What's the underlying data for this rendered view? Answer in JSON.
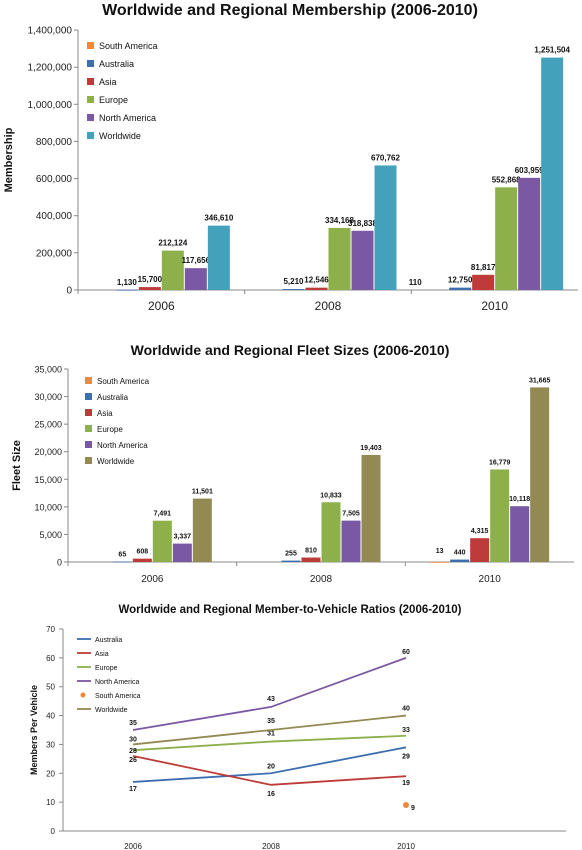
{
  "charts": [
    {
      "type": "bar",
      "title": "Worldwide and Regional Membership (2006-2010)",
      "xlabel": "",
      "ylabel": "Membership",
      "ylim": [
        0,
        1400000
      ],
      "yticks": [
        "0",
        "200,000",
        "400,000",
        "600,000",
        "800,000",
        "1,000,000",
        "1,200,000",
        "1,400,000"
      ],
      "categories": [
        "2006",
        "2008",
        "2010"
      ],
      "grid": false,
      "legend_position": "top-left",
      "series": [
        {
          "name": "South America",
          "color": "#f0883a",
          "values": [
            null,
            null,
            null
          ],
          "labels": [
            "",
            "",
            ""
          ]
        },
        {
          "name": "Australia",
          "color": "#3d6fb0",
          "values": [
            1130,
            5210,
            12750
          ],
          "labels": [
            "1,130",
            "5,210",
            "12,750"
          ]
        },
        {
          "name": "Asia",
          "color": "#bd3b38",
          "values": [
            15700,
            12546,
            81817
          ],
          "labels": [
            "15,700",
            "12,546",
            "81,817"
          ]
        },
        {
          "name": "Europe",
          "color": "#8db04a",
          "values": [
            212124,
            334168,
            552868
          ],
          "labels": [
            "212,124",
            "334,168",
            "552,868"
          ]
        },
        {
          "name": "North America",
          "color": "#7b58a3",
          "values": [
            117656,
            318838,
            603959
          ],
          "labels": [
            "117,656",
            "318,838",
            "603,959"
          ]
        },
        {
          "name": "Worldwide",
          "color": "#44a1bc",
          "values": [
            346610,
            670762,
            1251504
          ],
          "labels": [
            "346,610",
            "670,762",
            "1,251,504"
          ]
        }
      ],
      "extra_labels": [
        {
          "category": "2010",
          "text": "110"
        }
      ]
    },
    {
      "type": "bar",
      "title": "Worldwide and Regional Fleet Sizes (2006-2010)",
      "xlabel": "",
      "ylabel": "Fleet Size",
      "ylim": [
        0,
        35000
      ],
      "yticks": [
        "0",
        "5,000",
        "10,000",
        "15,000",
        "20,000",
        "25,000",
        "30,000",
        "35,000"
      ],
      "categories": [
        "2006",
        "2008",
        "2010"
      ],
      "grid": false,
      "legend_position": "top-left",
      "series": [
        {
          "name": "South America",
          "color": "#f0883a",
          "values": [
            null,
            null,
            13
          ],
          "labels": [
            "",
            "",
            "13"
          ]
        },
        {
          "name": "Australia",
          "color": "#3d6fb0",
          "values": [
            65,
            255,
            440
          ],
          "labels": [
            "65",
            "255",
            "440"
          ]
        },
        {
          "name": "Asia",
          "color": "#bd3b38",
          "values": [
            608,
            810,
            4315
          ],
          "labels": [
            "608",
            "810",
            "4,315"
          ]
        },
        {
          "name": "Europe",
          "color": "#8db04a",
          "values": [
            7491,
            10833,
            16779
          ],
          "labels": [
            "7,491",
            "10,833",
            "16,779"
          ]
        },
        {
          "name": "North America",
          "color": "#7b58a3",
          "values": [
            3337,
            7505,
            10118
          ],
          "labels": [
            "3,337",
            "7,505",
            "10,118"
          ]
        },
        {
          "name": "Worldwide",
          "color": "#938953",
          "values": [
            11501,
            19403,
            31665
          ],
          "labels": [
            "11,501",
            "19,403",
            "31,665"
          ]
        }
      ]
    },
    {
      "type": "line",
      "title": "Worldwide and Regional Member-to-Vehicle Ratios (2006-2010)",
      "xlabel": "",
      "ylabel": "Members Per Vehicle",
      "ylim": [
        0,
        70
      ],
      "yticks": [
        "0",
        "10",
        "20",
        "30",
        "40",
        "50",
        "60",
        "70"
      ],
      "x": [
        "2006",
        "2008",
        "2010"
      ],
      "grid": false,
      "legend_position": "top-left",
      "series": [
        {
          "name": "Australia",
          "color": "#3d6fb0",
          "values": [
            17,
            20,
            29
          ],
          "labels": [
            "17",
            "",
            "29"
          ]
        },
        {
          "name": "Asia",
          "color": "#bd3b38",
          "values": [
            26,
            16,
            19
          ],
          "labels": [
            "26",
            "16",
            "19"
          ]
        },
        {
          "name": "Europe",
          "color": "#8db04a",
          "values": [
            28,
            31,
            33
          ],
          "labels": [
            "28",
            "31",
            "33"
          ]
        },
        {
          "name": "North America",
          "color": "#7b58a3",
          "values": [
            35,
            43,
            60
          ],
          "labels": [
            "35",
            "43",
            "60"
          ]
        },
        {
          "name": "South America",
          "color": "#f0883a",
          "values": [
            null,
            null,
            9
          ],
          "labels": [
            "",
            "",
            "9"
          ],
          "marker_only": true
        },
        {
          "name": "Worldwide",
          "color": "#938953",
          "values": [
            30,
            35,
            40
          ],
          "labels": [
            "30",
            "35",
            "40"
          ]
        }
      ],
      "extra_labels": [
        {
          "category": "2008",
          "text": "20"
        }
      ]
    }
  ]
}
